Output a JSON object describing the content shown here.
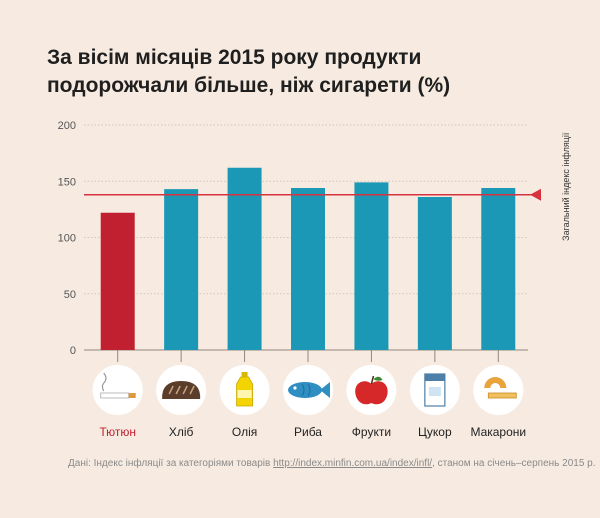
{
  "title": {
    "line1": "За вісім місяців 2015 року продукти",
    "line2": "подорожчали більше, ніж сигарети (%)"
  },
  "chart_data": {
    "type": "bar",
    "categories": [
      "Тютюн",
      "Хліб",
      "Олія",
      "Риба",
      "Фрукти",
      "Цукор",
      "Макарони"
    ],
    "values": [
      122,
      143,
      162,
      144,
      149,
      136,
      144
    ],
    "ylim": [
      0,
      200
    ],
    "yticks": [
      "0",
      "50",
      "100",
      "150",
      "200"
    ],
    "grid": true,
    "reference_line": {
      "label": "Загальний індекс інфляції",
      "value": 138
    },
    "colors": {
      "highlight": "#c0202f",
      "bar": "#1b98b5",
      "reference": "#d7333f",
      "highlight_label": "#c0202f",
      "label": "#222222",
      "grid": "#cfc6bd"
    },
    "highlight_index": 0,
    "icons": [
      "cigarette-icon",
      "bread-icon",
      "oil-bottle-icon",
      "fish-icon",
      "apple-icon",
      "sugar-pack-icon",
      "pasta-icon"
    ]
  },
  "footnote": {
    "prefix": "Дані:  Індекс інфляції за категоріями товарів ",
    "link": "http://index.minfin.com.ua/index/infl/",
    "suffix": ",  станом на січень–серпень 2015 р."
  }
}
